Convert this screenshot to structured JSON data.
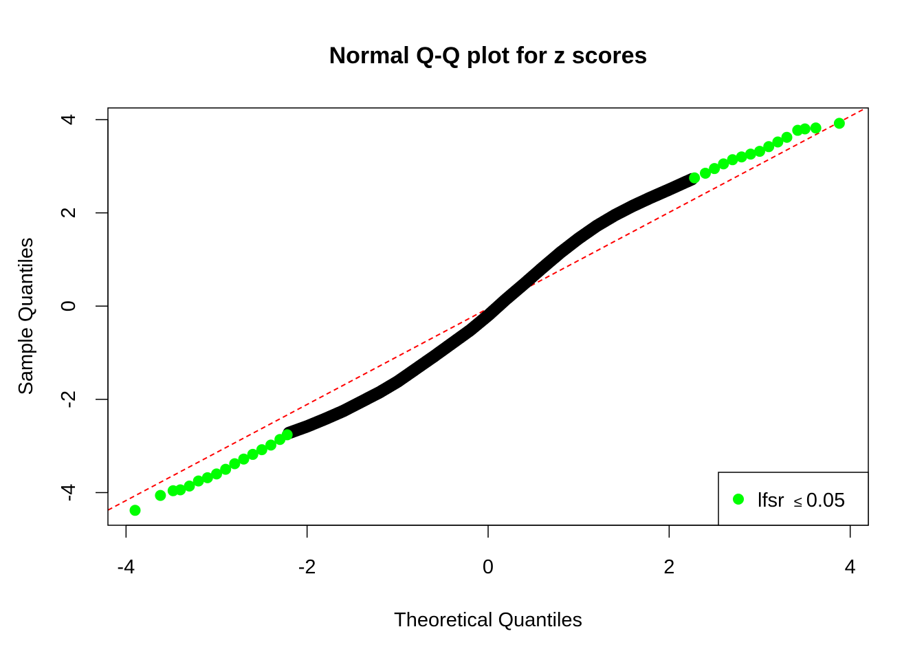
{
  "chart_data": {
    "type": "scatter",
    "title": "Normal Q-Q plot for z scores",
    "xlabel": "Theoretical Quantiles",
    "ylabel": "Sample Quantiles",
    "xlim": [
      -4.2,
      4.2
    ],
    "ylim": [
      -4.7,
      4.25
    ],
    "xticks": [
      -4,
      -2,
      0,
      2,
      4
    ],
    "yticks": [
      -4,
      -2,
      0,
      2,
      4
    ],
    "xtick_labels": [
      "-4",
      "-2",
      "0",
      "2",
      "4"
    ],
    "ytick_labels": [
      "-4",
      "-2",
      "0",
      "2",
      "4"
    ],
    "grid": false,
    "legend": {
      "position": "bottom-right",
      "entries": [
        {
          "label": "lfsr",
          "symbol": "≤",
          "value": "0.05",
          "color": "#00ff00"
        }
      ]
    },
    "reference_line": {
      "type": "dashed",
      "color": "#ff0000",
      "intercept": -0.05,
      "slope": 1.03
    },
    "series": [
      {
        "color": "#000000",
        "points": [
          [
            -2.2,
            -2.72
          ],
          [
            -2.0,
            -2.58
          ],
          [
            -1.8,
            -2.42
          ],
          [
            -1.6,
            -2.25
          ],
          [
            -1.4,
            -2.05
          ],
          [
            -1.2,
            -1.85
          ],
          [
            -1.0,
            -1.62
          ],
          [
            -0.8,
            -1.35
          ],
          [
            -0.6,
            -1.08
          ],
          [
            -0.4,
            -0.8
          ],
          [
            -0.2,
            -0.52
          ],
          [
            0.0,
            -0.2
          ],
          [
            0.2,
            0.15
          ],
          [
            0.4,
            0.48
          ],
          [
            0.6,
            0.82
          ],
          [
            0.8,
            1.15
          ],
          [
            1.0,
            1.45
          ],
          [
            1.2,
            1.72
          ],
          [
            1.4,
            1.95
          ],
          [
            1.6,
            2.15
          ],
          [
            1.8,
            2.33
          ],
          [
            2.0,
            2.5
          ],
          [
            2.25,
            2.72
          ]
        ]
      },
      {
        "name": "lfsr ≤ 0.05",
        "color": "#00ff00",
        "points": [
          [
            -3.9,
            -4.38
          ],
          [
            -3.62,
            -4.06
          ],
          [
            -3.48,
            -3.96
          ],
          [
            -3.4,
            -3.94
          ],
          [
            -3.3,
            -3.86
          ],
          [
            -3.2,
            -3.75
          ],
          [
            -3.1,
            -3.68
          ],
          [
            -3.0,
            -3.6
          ],
          [
            -2.9,
            -3.5
          ],
          [
            -2.8,
            -3.38
          ],
          [
            -2.7,
            -3.28
          ],
          [
            -2.6,
            -3.18
          ],
          [
            -2.5,
            -3.08
          ],
          [
            -2.4,
            -2.98
          ],
          [
            -2.3,
            -2.86
          ],
          [
            -2.22,
            -2.76
          ],
          [
            2.28,
            2.75
          ],
          [
            2.4,
            2.85
          ],
          [
            2.5,
            2.95
          ],
          [
            2.6,
            3.05
          ],
          [
            2.7,
            3.14
          ],
          [
            2.8,
            3.2
          ],
          [
            2.9,
            3.26
          ],
          [
            3.0,
            3.32
          ],
          [
            3.1,
            3.42
          ],
          [
            3.2,
            3.52
          ],
          [
            3.3,
            3.62
          ],
          [
            3.42,
            3.77
          ],
          [
            3.5,
            3.8
          ],
          [
            3.62,
            3.82
          ],
          [
            3.88,
            3.92
          ]
        ]
      }
    ]
  }
}
